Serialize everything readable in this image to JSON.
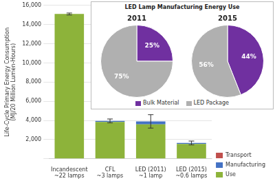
{
  "chart_data": [
    {
      "type": "bar",
      "stacked": true,
      "categories": [
        "Incandescent\n~22 lamps",
        "CFL\n~3 lamps",
        "LED (2011)\n~1 lamp",
        "LED (2015)\n~0.6 lamps"
      ],
      "series": [
        {
          "name": "Use",
          "color": "#8db33a",
          "values": [
            15100,
            3850,
            3600,
            1550
          ]
        },
        {
          "name": "Manufacturing",
          "color": "#4472c4",
          "values": [
            0,
            100,
            300,
            100
          ]
        },
        {
          "name": "Transport",
          "color": "#c0504d",
          "values": [
            0,
            0,
            0,
            0
          ]
        }
      ],
      "error_bars": [
        100,
        200,
        700,
        200
      ],
      "ylabel": "Life-Cycle Primary Energy Consumption\n(MJ/20 Million Lumen-Hours)",
      "ylim": [
        0,
        16000
      ],
      "yticks": [
        {
          "value": 0,
          "label": null
        },
        {
          "value": 2000,
          "label": "2,000"
        },
        {
          "value": 4000,
          "label": "4,000"
        },
        {
          "value": 6000,
          "label": "6,000"
        },
        {
          "value": 8000,
          "label": "8,000"
        },
        {
          "value": 10000,
          "label": "10,000"
        },
        {
          "value": 12000,
          "label": "12,000"
        },
        {
          "value": 14000,
          "label": "14,000"
        },
        {
          "value": 16000,
          "label": "16,000"
        }
      ],
      "grid": true,
      "legend": "right"
    },
    {
      "type": "pie",
      "title": "LED Lamp Manufacturing Energy Use",
      "subtitle": "2011",
      "categories": [
        "Bulk Material",
        "LED Package"
      ],
      "values": [
        25,
        75
      ],
      "value_labels": [
        "25%",
        "75%"
      ],
      "colors": [
        "#7030a0",
        "#b0b0b0"
      ],
      "data_labels": true,
      "legend": "bottom"
    },
    {
      "type": "pie",
      "subtitle": "2015",
      "categories": [
        "Bulk Material",
        "LED Package"
      ],
      "values": [
        44,
        56
      ],
      "value_labels": [
        "44%",
        "56%"
      ],
      "colors": [
        "#7030a0",
        "#b0b0b0"
      ],
      "data_labels": true
    }
  ]
}
